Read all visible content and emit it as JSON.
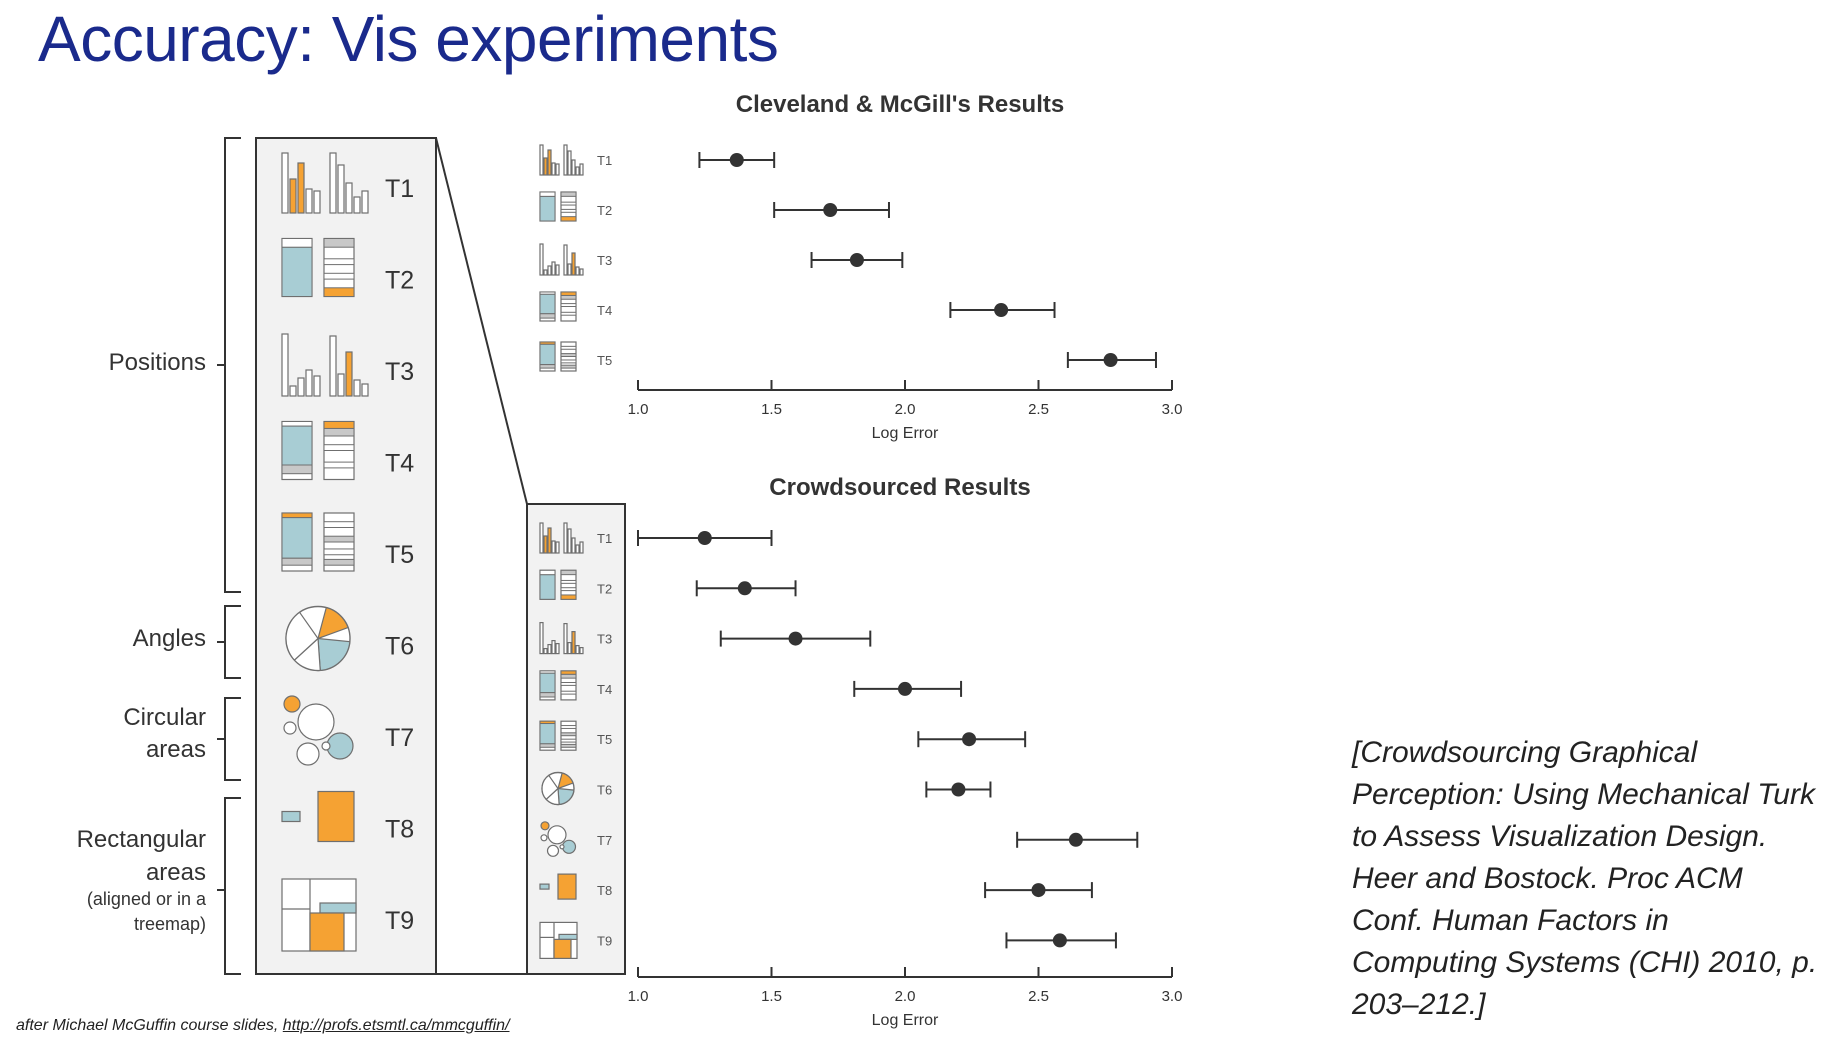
{
  "slide": {
    "title": "Accuracy: Vis experiments",
    "citation": "[Crowdsourcing Graphical Perception: Using Mechanical Turk to Assess Visualization Design. Heer and Bostock. Proc ACM Conf. Human Factors in Computing Systems (CHI) 2010, p. 203–212.]",
    "credit_text": "after Michael McGuffin course slides, ",
    "credit_link": "http://profs.etsmtl.ca/mmcguffin/"
  },
  "legend_panel": {
    "groups": [
      {
        "label_lines": [
          "Positions"
        ],
        "tasks": [
          "T1",
          "T2",
          "T3",
          "T4",
          "T5"
        ]
      },
      {
        "label_lines": [
          "Angles"
        ],
        "tasks": [
          "T6"
        ]
      },
      {
        "label_lines": [
          "Circular",
          "areas"
        ],
        "tasks": [
          "T7"
        ]
      },
      {
        "label_lines": [
          "Rectangular",
          "areas",
          "(aligned or in a",
          "treemap)"
        ],
        "tasks": [
          "T8",
          "T9"
        ]
      }
    ],
    "tasks": [
      "T1",
      "T2",
      "T3",
      "T4",
      "T5",
      "T6",
      "T7",
      "T8",
      "T9"
    ]
  },
  "colors": {
    "highlight": "#f5a233",
    "fill_blue": "#a8cdd4",
    "fill_grey": "#c8c8c8",
    "panel_bg": "#f2f2f2",
    "point": "#333333",
    "title_blue": "#1a2a8c"
  },
  "chart_data": [
    {
      "type": "scatter",
      "title": "Cleveland & McGill's  Results",
      "xlabel": "Log Error",
      "xlim": [
        1.0,
        3.0
      ],
      "xticks": [
        "1.0",
        "1.5",
        "2.0",
        "2.5",
        "3.0"
      ],
      "categories": [
        "T1",
        "T2",
        "T3",
        "T4",
        "T5"
      ],
      "series": [
        {
          "values": [
            1.37,
            1.72,
            1.82,
            2.36,
            2.77
          ],
          "ci_low": [
            1.23,
            1.51,
            1.65,
            2.17,
            2.61
          ],
          "ci_high": [
            1.51,
            1.94,
            1.99,
            2.56,
            2.94
          ]
        }
      ]
    },
    {
      "type": "scatter",
      "title": "Crowdsourced Results",
      "xlabel": "Log Error",
      "xlim": [
        1.0,
        3.0
      ],
      "xticks": [
        "1.0",
        "1.5",
        "2.0",
        "2.5",
        "3.0"
      ],
      "categories": [
        "T1",
        "T2",
        "T3",
        "T4",
        "T5",
        "T6",
        "T7",
        "T8",
        "T9"
      ],
      "series": [
        {
          "values": [
            1.25,
            1.4,
            1.59,
            2.0,
            2.24,
            2.2,
            2.64,
            2.5,
            2.58
          ],
          "ci_low": [
            1.0,
            1.22,
            1.31,
            1.81,
            2.05,
            2.08,
            2.42,
            2.3,
            2.38
          ],
          "ci_high": [
            1.5,
            1.59,
            1.87,
            2.21,
            2.45,
            2.32,
            2.87,
            2.7,
            2.79
          ]
        }
      ]
    }
  ]
}
